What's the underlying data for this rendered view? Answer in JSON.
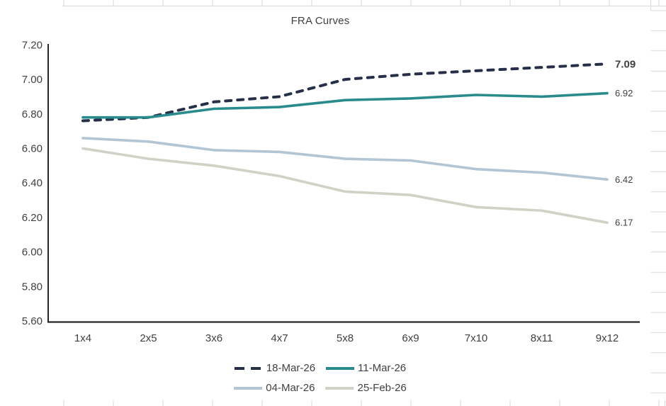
{
  "title": "FRA Curves",
  "colors": {
    "series_18_mar_26": "#262f48",
    "series_11_mar_26": "#2a8b8d",
    "series_04_mar_26": "#b2c5d4",
    "series_25_feb_26": "#d2d1c5",
    "axis_line": "#262626",
    "text": "#404040",
    "spreadsheet_gridline": "#d9d9d9"
  },
  "chart_data": {
    "type": "line",
    "title": "FRA Curves",
    "categories": [
      "1x4",
      "2x5",
      "3x6",
      "4x7",
      "5x8",
      "6x9",
      "7x10",
      "8x11",
      "9x12"
    ],
    "series": [
      {
        "name": "18-Mar-26",
        "style": "dashed",
        "color": "#262f48",
        "values": [
          6.76,
          6.78,
          6.87,
          6.9,
          7.0,
          7.03,
          7.05,
          7.07,
          7.09
        ],
        "end_label": "7.09",
        "end_label_bold": true
      },
      {
        "name": "11-Mar-26",
        "style": "solid",
        "color": "#2a8b8d",
        "values": [
          6.78,
          6.78,
          6.83,
          6.84,
          6.88,
          6.89,
          6.91,
          6.9,
          6.92
        ],
        "end_label": "6.92",
        "end_label_bold": false
      },
      {
        "name": "04-Mar-26",
        "style": "solid",
        "color": "#b2c5d4",
        "values": [
          6.66,
          6.64,
          6.59,
          6.58,
          6.54,
          6.53,
          6.48,
          6.46,
          6.42
        ],
        "end_label": "6.42",
        "end_label_bold": false
      },
      {
        "name": "25-Feb-26",
        "style": "solid",
        "color": "#d2d1c5",
        "values": [
          6.6,
          6.54,
          6.5,
          6.44,
          6.35,
          6.33,
          6.26,
          6.24,
          6.17
        ],
        "end_label": "6.17",
        "end_label_bold": false
      }
    ],
    "y_axis": {
      "min": 5.6,
      "max": 7.2,
      "step": 0.2,
      "tick_labels": [
        "5.60",
        "5.80",
        "6.00",
        "6.20",
        "6.40",
        "6.60",
        "6.80",
        "7.00",
        "7.20"
      ]
    },
    "xlabel": "",
    "ylabel": "",
    "grid": false,
    "legend_position": "bottom",
    "legend_rows": [
      [
        "18-Mar-26",
        "11-Mar-26"
      ],
      [
        "04-Mar-26",
        "25-Feb-26"
      ]
    ]
  }
}
